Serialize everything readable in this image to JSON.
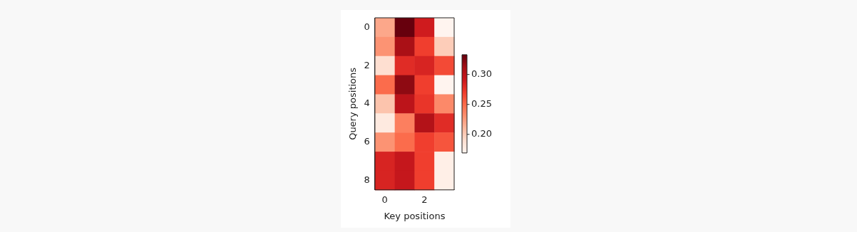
{
  "chart_data": {
    "type": "heatmap",
    "xlabel": "Key positions",
    "ylabel": "Query positions",
    "categories": [
      "0",
      null,
      "2",
      null
    ],
    "y_categories": [
      "0",
      null,
      "2",
      null,
      "4",
      null,
      "6",
      null,
      "8"
    ],
    "cells": [
      [
        0.22,
        0.333,
        0.29,
        0.17
      ],
      [
        0.23,
        0.31,
        0.27,
        0.2
      ],
      [
        0.19,
        0.28,
        0.285,
        0.265
      ],
      [
        0.25,
        0.32,
        0.27,
        0.17
      ],
      [
        0.205,
        0.3,
        0.275,
        0.235
      ],
      [
        0.18,
        0.24,
        0.305,
        0.28
      ],
      [
        0.23,
        0.25,
        0.27,
        0.26
      ],
      [
        0.285,
        0.295,
        0.27,
        0.175
      ],
      [
        0.285,
        0.295,
        0.27,
        0.175
      ]
    ],
    "clim": [
      0.169,
      0.333
    ],
    "cticks": [
      {
        "value": 0.2,
        "label": "0.20"
      },
      0.25,
      {
        "value": 0.3,
        "label": "0.30"
      }
    ]
  }
}
